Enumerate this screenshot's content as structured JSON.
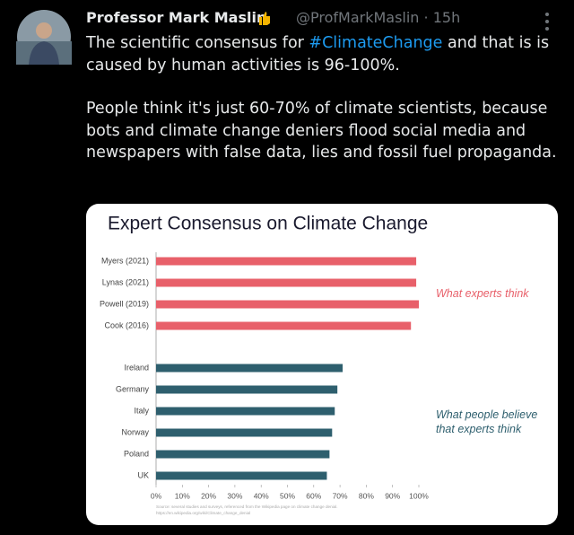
{
  "tweet": {
    "name": "Professor Mark Maslin",
    "handle": "@ProfMarkMaslin",
    "separator": "·",
    "time": "15h",
    "body": [
      [
        "The scientific consensus for ",
        "#ClimateChange",
        " and that is is caused by human activities is 96-100%."
      ],
      [
        "People think it's just 60-70% of climate scientists, because bots and climate change deniers flood social media and newspapers with false data, lies and fossil fuel propaganda."
      ]
    ]
  },
  "chart_data": {
    "type": "hbar",
    "title": "Expert Consensus on Climate Change",
    "categories": [
      "Myers (2021)",
      "Lynas (2021)",
      "Powell (2019)",
      "Cook (2016)",
      "Ireland",
      "Germany",
      "Italy",
      "Norway",
      "Poland",
      "UK"
    ],
    "series": [
      {
        "name": "What experts think",
        "color": "#e8606a",
        "values": [
          99,
          99,
          100,
          97,
          null,
          null,
          null,
          null,
          null,
          null
        ]
      },
      {
        "name": "What people believe that experts think",
        "color": "#2e5f6e",
        "values": [
          null,
          null,
          null,
          null,
          71,
          69,
          68,
          67,
          66,
          65
        ]
      }
    ],
    "xlim": [
      0,
      100
    ],
    "xticks": [
      {
        "value": 0,
        "label": "0%"
      },
      {
        "value": 10,
        "label": "10%"
      },
      {
        "value": 20,
        "label": "20%"
      },
      {
        "value": 30,
        "label": "30%"
      },
      {
        "value": 40,
        "label": "40%"
      },
      {
        "value": 50,
        "label": "50%"
      },
      {
        "value": 60,
        "label": "60%"
      },
      {
        "value": 70,
        "label": "70%"
      },
      {
        "value": 80,
        "label": "80%"
      },
      {
        "value": 90,
        "label": "90%"
      },
      {
        "value": 100,
        "label": "100%"
      }
    ],
    "source": [
      "Source: several studies and surveys, referenced from the Wikipedia page on climate change denial.",
      "https://en.wikipedia.org/wiki/Climate_change_denial"
    ]
  }
}
